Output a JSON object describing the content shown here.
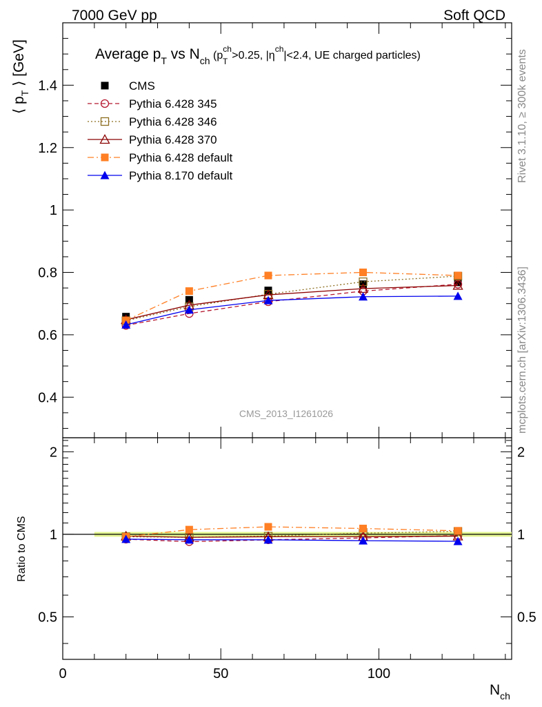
{
  "header": {
    "left": "7000 GeV pp",
    "right": "Soft QCD"
  },
  "side_labels": {
    "rivet": "Rivet 3.1.10, ≥ 300k events",
    "mcplots": "mcplots.cern.ch [arXiv:1306.3436]"
  },
  "watermark": "CMS_2013_I1261026",
  "chart_data": [
    {
      "type": "line",
      "title_parts": {
        "lead": "Average p",
        "lead_sub": "T",
        "mid": " vs N",
        "mid_sub": "ch",
        "paren_open": " (p",
        "paren_sup": "ch",
        "paren_sub": "T",
        "cut1": ">0.25, |η",
        "cut1_sup": "ch",
        "cut2": "|<2.4, UE charged particles)"
      },
      "ylabel": "⟨ p",
      "ylabel_sub": "T",
      "ylabel_tail": " ⟩ [GeV]",
      "ylim": [
        0.27,
        1.6
      ],
      "xlim": [
        0,
        142
      ],
      "y_ticks": [
        0.4,
        0.6,
        0.8,
        1,
        1.2,
        1.4
      ],
      "y_tick_labels": [
        "0.4",
        "0.6",
        "0.8",
        "1",
        "1.2",
        "1.4"
      ],
      "legend_position": "top-left",
      "series": [
        {
          "name": "CMS",
          "x": [
            20,
            40,
            65,
            95,
            125
          ],
          "values": [
            0.658,
            0.712,
            0.742,
            0.762,
            0.768
          ],
          "color": "#000000",
          "marker": "square-filled",
          "line": "none"
        },
        {
          "name": "Pythia 6.428 345",
          "x": [
            20,
            40,
            65,
            95,
            125
          ],
          "values": [
            0.63,
            0.668,
            0.706,
            0.74,
            0.762
          ],
          "color": "#b5172f",
          "marker": "circle-open",
          "line": "dashed"
        },
        {
          "name": "Pythia 6.428 346",
          "x": [
            20,
            40,
            65,
            95,
            125
          ],
          "values": [
            0.645,
            0.69,
            0.73,
            0.77,
            0.788
          ],
          "color": "#8c6d1f",
          "marker": "square-open",
          "line": "dotted"
        },
        {
          "name": "Pythia 6.428 370",
          "x": [
            20,
            40,
            65,
            95,
            125
          ],
          "values": [
            0.648,
            0.695,
            0.728,
            0.748,
            0.758
          ],
          "color": "#8b0000",
          "marker": "triangle-open",
          "line": "solid"
        },
        {
          "name": "Pythia 6.428 default",
          "x": [
            20,
            40,
            65,
            95,
            125
          ],
          "values": [
            0.646,
            0.74,
            0.79,
            0.8,
            0.79
          ],
          "color": "#ff7f24",
          "marker": "square-filled",
          "line": "dashdot"
        },
        {
          "name": "Pythia 8.170 default",
          "x": [
            20,
            40,
            65,
            95,
            125
          ],
          "values": [
            0.632,
            0.68,
            0.71,
            0.722,
            0.724
          ],
          "color": "#0000ee",
          "marker": "triangle-filled",
          "line": "solid"
        }
      ]
    },
    {
      "type": "line",
      "ylabel": "Ratio to CMS",
      "xlabel": "N",
      "xlabel_sub": "ch",
      "ylim": [
        0.35,
        2.25
      ],
      "xlim": [
        0,
        142
      ],
      "log_y": true,
      "x_ticks": [
        0,
        50,
        100
      ],
      "x_tick_labels": [
        "0",
        "50",
        "100"
      ],
      "y_ticks": [
        0.5,
        1,
        2
      ],
      "y_tick_labels": [
        "0.5",
        "1",
        "2"
      ],
      "band": {
        "x": [
          10,
          142
        ],
        "low": 0.98,
        "high": 1.02,
        "color": "#e3f48f"
      },
      "series": [
        {
          "name": "Pythia 6.428 345",
          "x": [
            20,
            40,
            65,
            95,
            125
          ],
          "values": [
            0.96,
            0.94,
            0.955,
            0.97,
            0.99
          ],
          "color": "#b5172f",
          "marker": "circle-open",
          "line": "dashed"
        },
        {
          "name": "Pythia 6.428 346",
          "x": [
            20,
            40,
            65,
            95,
            125
          ],
          "values": [
            0.98,
            0.975,
            0.985,
            1.01,
            1.025
          ],
          "color": "#8c6d1f",
          "marker": "square-open",
          "line": "dotted"
        },
        {
          "name": "Pythia 6.428 370",
          "x": [
            20,
            40,
            65,
            95,
            125
          ],
          "values": [
            0.985,
            0.975,
            0.98,
            0.98,
            0.985
          ],
          "color": "#8b0000",
          "marker": "triangle-open",
          "line": "solid"
        },
        {
          "name": "Pythia 6.428 default",
          "x": [
            20,
            40,
            65,
            95,
            125
          ],
          "values": [
            0.98,
            1.04,
            1.065,
            1.05,
            1.03
          ],
          "color": "#ff7f24",
          "marker": "square-filled",
          "line": "dashdot"
        },
        {
          "name": "Pythia 8.170 default",
          "x": [
            20,
            40,
            65,
            95,
            125
          ],
          "values": [
            0.96,
            0.955,
            0.955,
            0.948,
            0.943
          ],
          "color": "#0000ee",
          "marker": "triangle-filled",
          "line": "solid"
        }
      ]
    }
  ]
}
